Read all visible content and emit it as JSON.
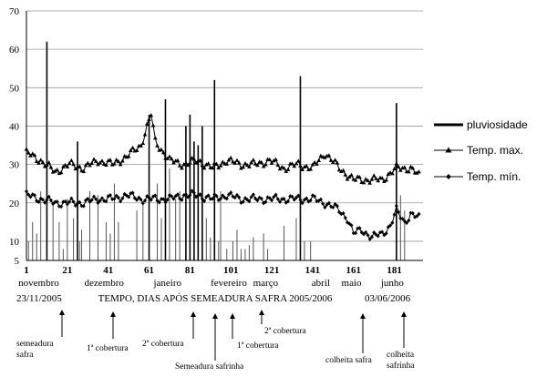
{
  "chart_data": {
    "type": "line",
    "xlabel": "TEMPO, DIAS APÓS SEMEADURA SAFRA 2005/2006",
    "start_date": "23/11/2005",
    "end_date": "03/06/2006",
    "xlim": [
      1,
      195
    ],
    "ylim": [
      5,
      70
    ],
    "x_ticks": [
      1,
      21,
      41,
      61,
      81,
      101,
      121,
      141,
      161,
      181
    ],
    "y_ticks": [
      5,
      10,
      20,
      30,
      40,
      50,
      60,
      70
    ],
    "grid": "horizontal",
    "months": [
      {
        "label": "novembro",
        "x": 7
      },
      {
        "label": "dezembro",
        "x": 39
      },
      {
        "label": "janeiro",
        "x": 70
      },
      {
        "label": "fevereiro",
        "x": 100
      },
      {
        "label": "março",
        "x": 118
      },
      {
        "label": "abril",
        "x": 145
      },
      {
        "label": "maio",
        "x": 160
      },
      {
        "label": "junho",
        "x": 180
      }
    ],
    "legend": [
      {
        "label": "pluviosidade",
        "style": "bar"
      },
      {
        "label": "Temp. max.",
        "style": "triangle"
      },
      {
        "label": "Temp. mín.",
        "style": "diamond"
      }
    ],
    "legend_position": "right",
    "series": [
      {
        "name": "Temp. max.",
        "marker": "triangle",
        "points": [
          [
            1,
            33
          ],
          [
            8,
            31
          ],
          [
            15,
            28
          ],
          [
            22,
            30
          ],
          [
            29,
            29
          ],
          [
            36,
            31
          ],
          [
            43,
            30
          ],
          [
            50,
            32
          ],
          [
            57,
            35
          ],
          [
            62,
            43
          ],
          [
            64,
            36
          ],
          [
            71,
            31
          ],
          [
            78,
            30
          ],
          [
            85,
            31
          ],
          [
            92,
            29
          ],
          [
            99,
            31
          ],
          [
            106,
            30
          ],
          [
            113,
            30
          ],
          [
            120,
            31
          ],
          [
            127,
            29
          ],
          [
            134,
            30
          ],
          [
            141,
            29
          ],
          [
            147,
            33
          ],
          [
            154,
            29
          ],
          [
            161,
            26
          ],
          [
            168,
            26
          ],
          [
            175,
            26
          ],
          [
            182,
            29
          ],
          [
            189,
            29
          ],
          [
            193,
            27
          ]
        ]
      },
      {
        "name": "Temp. mín.",
        "marker": "diamond",
        "points": [
          [
            1,
            22
          ],
          [
            8,
            21
          ],
          [
            15,
            20
          ],
          [
            22,
            20
          ],
          [
            29,
            20
          ],
          [
            36,
            21
          ],
          [
            43,
            21
          ],
          [
            50,
            22
          ],
          [
            57,
            21
          ],
          [
            64,
            21
          ],
          [
            71,
            21
          ],
          [
            78,
            22
          ],
          [
            85,
            22
          ],
          [
            92,
            21
          ],
          [
            99,
            22
          ],
          [
            106,
            21
          ],
          [
            113,
            21
          ],
          [
            120,
            21
          ],
          [
            127,
            21
          ],
          [
            134,
            21
          ],
          [
            141,
            21
          ],
          [
            147,
            20
          ],
          [
            151,
            19
          ],
          [
            154,
            18
          ],
          [
            158,
            16
          ],
          [
            161,
            12
          ],
          [
            165,
            13
          ],
          [
            170,
            11
          ],
          [
            175,
            12
          ],
          [
            179,
            14
          ],
          [
            182,
            18
          ],
          [
            186,
            15
          ],
          [
            189,
            17
          ],
          [
            193,
            16
          ]
        ]
      },
      {
        "name": "pluviosidade",
        "style": "bar",
        "values": [
          [
            2,
            10
          ],
          [
            4,
            15
          ],
          [
            6,
            12
          ],
          [
            8,
            23
          ],
          [
            11,
            62
          ],
          [
            14,
            20
          ],
          [
            17,
            15
          ],
          [
            19,
            8
          ],
          [
            21,
            21
          ],
          [
            24,
            16
          ],
          [
            26,
            36
          ],
          [
            27,
            10
          ],
          [
            28,
            13
          ],
          [
            32,
            23
          ],
          [
            36,
            22
          ],
          [
            40,
            15
          ],
          [
            42,
            12
          ],
          [
            44,
            25
          ],
          [
            46,
            15
          ],
          [
            55,
            18
          ],
          [
            58,
            20
          ],
          [
            61,
            43
          ],
          [
            65,
            25
          ],
          [
            67,
            16
          ],
          [
            69,
            47
          ],
          [
            71,
            29
          ],
          [
            74,
            21
          ],
          [
            76,
            23
          ],
          [
            79,
            40
          ],
          [
            81,
            43
          ],
          [
            83,
            36
          ],
          [
            85,
            35
          ],
          [
            87,
            40
          ],
          [
            89,
            16
          ],
          [
            91,
            11
          ],
          [
            93,
            52
          ],
          [
            95,
            10
          ],
          [
            96,
            23
          ],
          [
            99,
            8
          ],
          [
            102,
            10
          ],
          [
            104,
            13
          ],
          [
            106,
            8
          ],
          [
            108,
            8
          ],
          [
            110,
            9
          ],
          [
            112,
            11
          ],
          [
            117,
            12
          ],
          [
            119,
            8
          ],
          [
            127,
            14
          ],
          [
            133,
            16
          ],
          [
            135,
            53
          ],
          [
            137,
            10
          ],
          [
            140,
            10
          ],
          [
            182,
            46
          ],
          [
            184,
            22
          ],
          [
            186,
            18
          ]
        ]
      }
    ]
  },
  "events": [
    {
      "label": "semeadura\nsafra",
      "x": 18
    },
    {
      "label": "1ª cobertura",
      "x": 42
    },
    {
      "label": "2ª cobertura",
      "x": 79
    },
    {
      "label": "Semeadura safrinha",
      "x": 88
    },
    {
      "label": "1ª cobertura",
      "x": 97
    },
    {
      "label": "2ª cobertura",
      "x": 113
    },
    {
      "label": "colheita safra",
      "x": 162
    },
    {
      "label": "colheita\nsafrinha",
      "x": 184
    }
  ]
}
